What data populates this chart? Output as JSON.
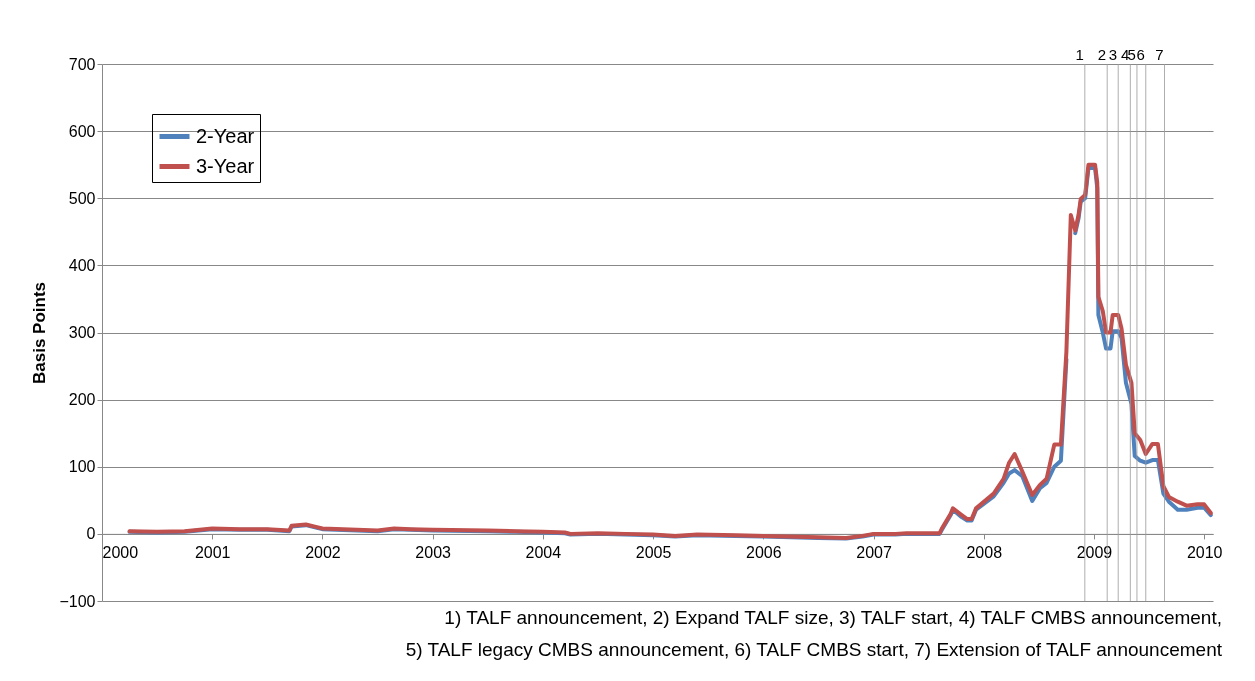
{
  "chart_data": {
    "type": "line",
    "ylabel": "Basis Points",
    "x": [
      2000.25,
      2000.5,
      2000.75,
      2001.0,
      2001.25,
      2001.5,
      2001.7,
      2001.72,
      2001.85,
      2001.95,
      2002.0,
      2002.5,
      2002.65,
      2002.8,
      2003.0,
      2003.5,
      2003.75,
      2004.0,
      2004.2,
      2004.25,
      2004.5,
      2004.75,
      2005.0,
      2005.2,
      2005.4,
      2005.75,
      2006.0,
      2006.5,
      2006.75,
      2006.9,
      2007.0,
      2007.2,
      2007.3,
      2007.6,
      2007.62,
      2007.7,
      2007.72,
      2007.8,
      2007.85,
      2007.89,
      2007.93,
      2008.09,
      2008.18,
      2008.23,
      2008.28,
      2008.35,
      2008.44,
      2008.51,
      2008.57,
      2008.64,
      2008.7,
      2008.75,
      2008.79,
      2008.83,
      2008.86,
      2008.88,
      2008.92,
      2008.95,
      2009.01,
      2009.03,
      2009.04,
      2009.08,
      2009.11,
      2009.15,
      2009.17,
      2009.22,
      2009.25,
      2009.29,
      2009.34,
      2009.37,
      2009.42,
      2009.47,
      2009.53,
      2009.58,
      2009.63,
      2009.68,
      2009.76,
      2009.84,
      2009.94,
      2010.0,
      2010.06
    ],
    "series": [
      {
        "name": "2-Year",
        "color": "#4f81bd",
        "values": [
          3,
          2,
          3,
          7,
          6,
          6,
          4,
          11,
          13,
          9,
          7,
          4,
          7,
          6,
          5,
          4,
          3,
          2,
          1,
          -1,
          0,
          -1,
          -2,
          -4,
          -2,
          -3,
          -4,
          -6,
          -7,
          -4,
          -1,
          -1,
          0,
          0,
          6,
          28,
          36,
          25,
          20,
          20,
          36,
          56,
          76,
          90,
          95,
          86,
          49,
          68,
          76,
          100,
          109,
          260,
          null,
          448,
          470,
          495,
          500,
          545,
          545,
          515,
          326,
          300,
          276,
          276,
          302,
          302,
          292,
          225,
          194,
          116,
          109,
          106,
          110,
          110,
          60,
          48,
          36,
          36,
          39,
          39,
          28
        ]
      },
      {
        "name": "3-Year",
        "color": "#c0504d",
        "values": [
          4,
          3,
          4,
          8,
          7,
          7,
          5,
          12,
          14,
          10,
          8,
          5,
          8,
          7,
          6,
          5,
          4,
          3,
          2,
          0,
          1,
          0,
          -1,
          -3,
          -1,
          -2,
          -3,
          -5,
          -6,
          -3,
          0,
          0,
          1,
          1,
          8,
          30,
          38,
          28,
          22,
          22,
          38,
          60,
          82,
          106,
          119,
          93,
          58,
          73,
          82,
          133,
          133,
          272,
          475,
          452,
          475,
          499,
          505,
          550,
          550,
          523,
          353,
          332,
          300,
          300,
          326,
          326,
          306,
          252,
          225,
          150,
          140,
          119,
          134,
          134,
          71,
          55,
          48,
          42,
          44,
          44,
          31
        ]
      }
    ],
    "xlim": [
      2000,
      2010.08
    ],
    "xticks": [
      2000,
      2001,
      2002,
      2003,
      2004,
      2005,
      2006,
      2007,
      2008,
      2009,
      2010
    ],
    "ylim": [
      -100,
      700
    ],
    "yticks": [
      -100,
      0,
      100,
      200,
      300,
      400,
      500,
      600,
      700
    ],
    "grid": "y",
    "legend": "top left",
    "line_style": "solid",
    "marker": "none",
    "ref_lines": [
      {
        "axis": "x",
        "value": 2008.917
      },
      {
        "axis": "x",
        "value": 2009.12
      },
      {
        "axis": "x",
        "value": 2009.22
      },
      {
        "axis": "x",
        "value": 2009.33
      },
      {
        "axis": "x",
        "value": 2009.39
      },
      {
        "axis": "x",
        "value": 2009.47
      },
      {
        "axis": "x",
        "value": 2009.64
      }
    ],
    "annotations": [
      {
        "text": "1",
        "x": 2008.917,
        "y": 700
      },
      {
        "text": "2",
        "x": 2009.12,
        "y": 700
      },
      {
        "text": "3",
        "x": 2009.22,
        "y": 700
      },
      {
        "text": "4",
        "x": 2009.33,
        "y": 700
      },
      {
        "text": "5",
        "x": 2009.39,
        "y": 700
      },
      {
        "text": "6",
        "x": 2009.47,
        "y": 700
      },
      {
        "text": "7",
        "x": 2009.64,
        "y": 700
      },
      "1) TALF announcement, 2) Expand TALF size, 3) TALF start, 4) TALF CMBS announcement,",
      "5) TALF legacy CMBS announcement, 6) TALF CMBS start, 7) Extension of TALF announcement"
    ]
  }
}
